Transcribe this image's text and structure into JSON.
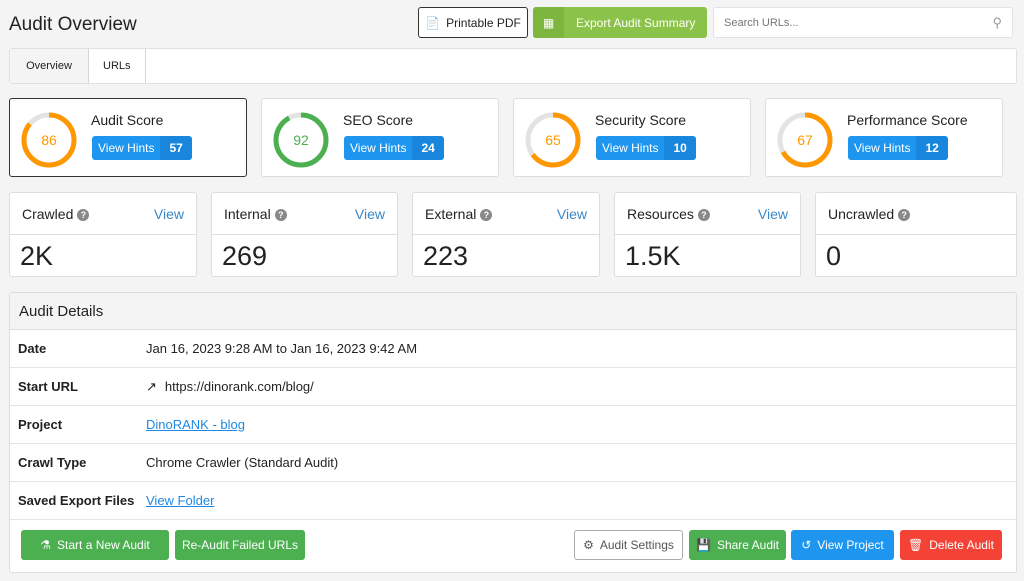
{
  "header": {
    "title": "Audit Overview",
    "printable_pdf": "Printable PDF",
    "export": "Export Audit Summary",
    "search_placeholder": "Search URLs..."
  },
  "tabs": [
    {
      "label": "Overview",
      "active": true
    },
    {
      "label": "URLs",
      "active": false
    }
  ],
  "scores": [
    {
      "label": "Audit Score",
      "value": 86,
      "hints_label": "View Hints",
      "hints": "57",
      "color": "#ff9800"
    },
    {
      "label": "SEO Score",
      "value": 92,
      "hints_label": "View Hints",
      "hints": "24",
      "color": "#4caf50"
    },
    {
      "label": "Security Score",
      "value": 65,
      "hints_label": "View Hints",
      "hints": "10",
      "color": "#ff9800"
    },
    {
      "label": "Performance Score",
      "value": 67,
      "hints_label": "View Hints",
      "hints": "12",
      "color": "#ff9800"
    }
  ],
  "stats": [
    {
      "label": "Crawled",
      "link": "View",
      "value": "2K"
    },
    {
      "label": "Internal",
      "link": "View",
      "value": "269"
    },
    {
      "label": "External",
      "link": "View",
      "value": "223"
    },
    {
      "label": "Resources",
      "link": "View",
      "value": "1.5K"
    },
    {
      "label": "Uncrawled",
      "value": "0"
    }
  ],
  "details": {
    "title": "Audit Details",
    "date_label": "Date",
    "date": "Jan 16, 2023 9:28 AM to Jan 16, 2023 9:42 AM",
    "url_label": "Start URL",
    "url": "https://dinorank.com/blog/",
    "project_label": "Project",
    "project": "DinoRANK - blog",
    "crawl_label": "Crawl Type",
    "crawl": "Chrome Crawler (Standard Audit)",
    "files_label": "Saved Export Files",
    "files": "View Folder"
  },
  "footer": {
    "new_audit": "Start a New Audit",
    "reaudit": "Re-Audit Failed URLs",
    "settings": "Audit Settings",
    "share": "Share Audit",
    "view_project": "View Project",
    "delete": "Delete Audit"
  }
}
